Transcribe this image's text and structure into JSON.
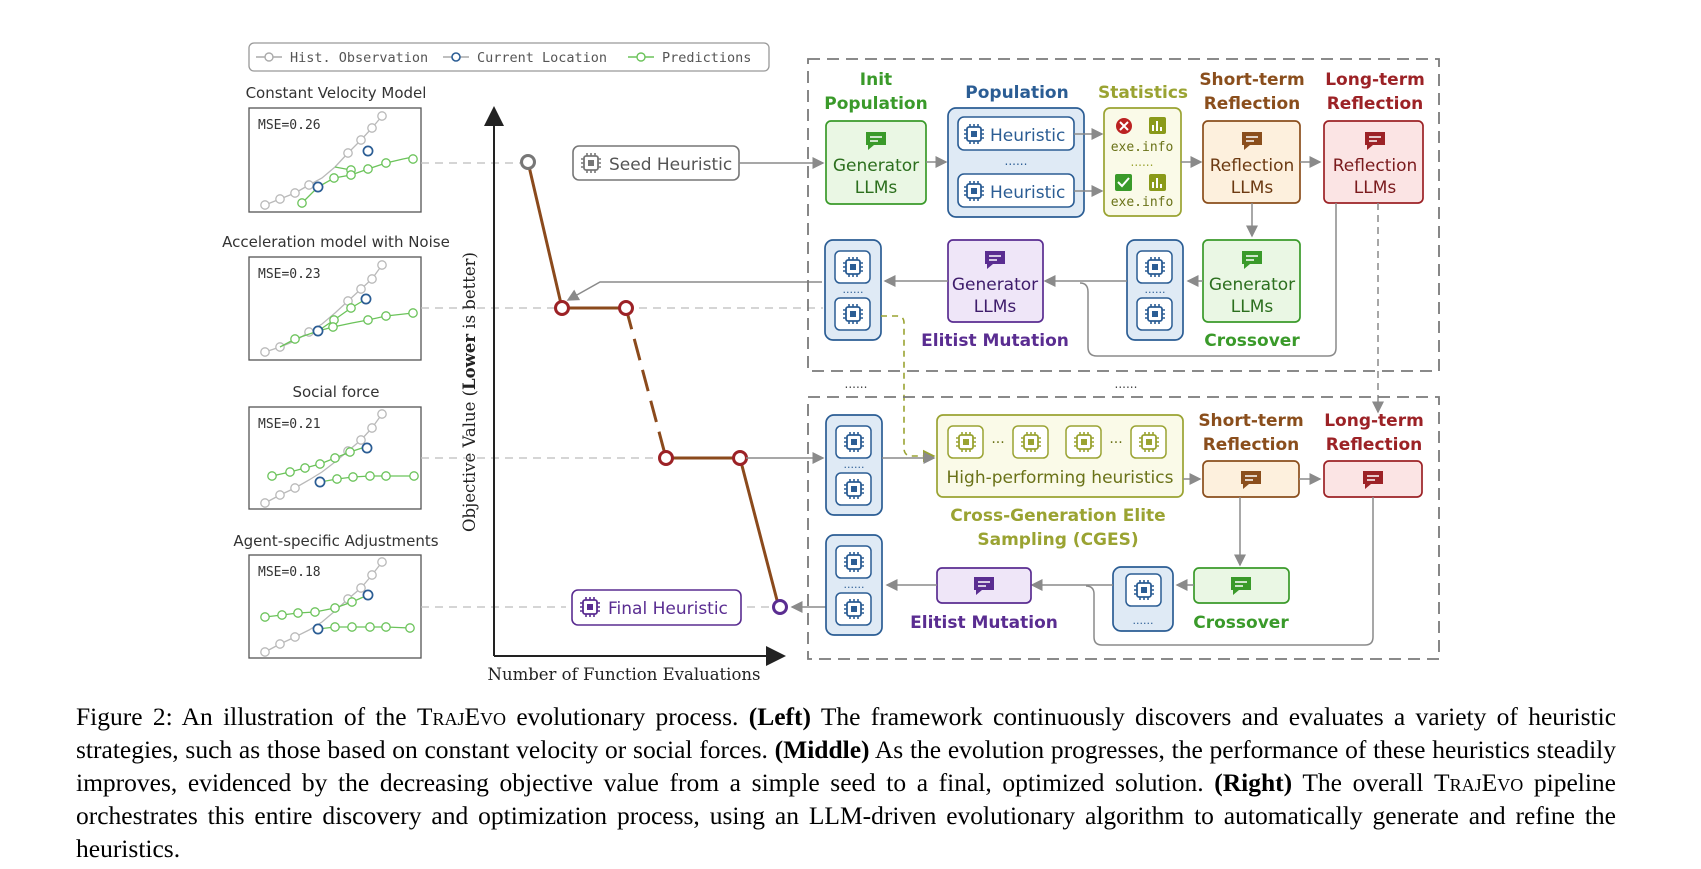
{
  "legend": {
    "hist": "Hist. Observation",
    "current": "Current Location",
    "pred": "Predictions"
  },
  "models": [
    {
      "title": "Constant Velocity Model",
      "mse": "MSE=0.26"
    },
    {
      "title": "Acceleration model with Noise",
      "mse": "MSE=0.23"
    },
    {
      "title": "Social force",
      "mse": "MSE=0.21"
    },
    {
      "title": "Agent-specific Adjustments",
      "mse": "MSE=0.18"
    }
  ],
  "plot": {
    "ylabel_pre": "Objective Value (",
    "ylabel_bold": "Lower",
    "ylabel_post": " is better)",
    "xlabel": "Number of Function Evaluations"
  },
  "seed_label": "Seed Heuristic",
  "final_label": "Final Heuristic",
  "top": {
    "init_title_1": "Init",
    "init_title_2": "Population",
    "gen_1": "Generator",
    "gen_2": "LLMs",
    "population_title": "Population",
    "heuristic": "Heuristic",
    "dots": "......",
    "statistics_title": "Statistics",
    "exe_info": "exe.info",
    "st_title_1": "Short-term",
    "st_title_2": "Reflection",
    "lt_title_1": "Long-term",
    "lt_title_2": "Reflection",
    "refl_1": "Reflection",
    "refl_2": "LLMs",
    "elitist_mutation": "Elitist Mutation",
    "crossover": "Crossover"
  },
  "between_dots": "......",
  "bottom": {
    "high_perf": "High-performing heuristics",
    "ellipsis": "···",
    "cges_1": "Cross-Generation Elite",
    "cges_2": "Sampling (CGES)",
    "st_title_1": "Short-term",
    "st_title_2": "Reflection",
    "lt_title_1": "Long-term",
    "lt_title_2": "Reflection",
    "elitist_mutation": "Elitist Mutation",
    "crossover": "Crossover"
  },
  "caption": {
    "prefix": "Figure 2: An illustration of the ",
    "name": "TrajEvo",
    "after_name": " evolutionary process. ",
    "left_label": "(Left)",
    "left_text": " The framework continuously discovers and evaluates a variety of heuristic strategies, such as those based on constant velocity or social forces. ",
    "middle_label": "(Middle)",
    "middle_text": " As the evolution progresses, the performance of these heuristics steadily improves, evidenced by the decreasing objective value from a simple seed to a final, optimized solution. ",
    "right_label": "(Right)",
    "right_text_1": " The overall ",
    "right_text_2": " pipeline orchestrates this entire discovery and optimization process, using an LLM-driven evolutionary algorithm to automatically generate and refine the heuristics."
  },
  "colors": {
    "green": "#3a9a2a",
    "blue": "#2b5d94",
    "purple": "#5a2d91",
    "olive": "#9aa332",
    "orange": "#8a4e1c",
    "red": "#9c2226",
    "brown_curve": "#8b4a1c",
    "gray": "#8a8a8a"
  }
}
